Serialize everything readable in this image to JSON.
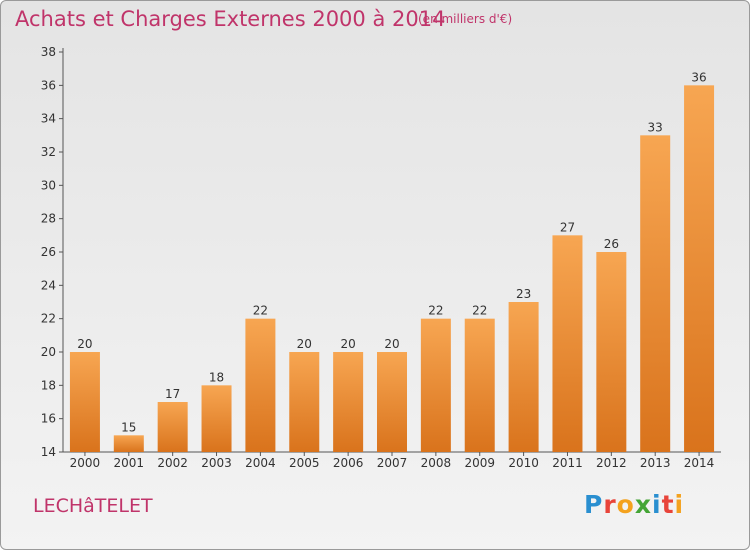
{
  "header": {
    "title": "Achats et Charges Externes 2000 à 2014",
    "subtitle": "(en milliers d'€)"
  },
  "footer": {
    "commune": "LECHâTELET",
    "brand": [
      "P",
      "r",
      "o",
      "x",
      "i",
      "t",
      "i"
    ],
    "brand_colors": [
      "#2a8fd0",
      "#e8443a",
      "#f4a21e",
      "#44a535",
      "#2a8fd0",
      "#e8443a",
      "#f4a21e"
    ]
  },
  "colors": {
    "bar_top": "#f7a652",
    "bar_bottom": "#d9731c",
    "text": "#c0346a",
    "axis": "#555555"
  },
  "chart_data": {
    "type": "bar",
    "title": "Achats et Charges Externes 2000 à 2014",
    "subtitle": "(en milliers d'€)",
    "categories": [
      "2000",
      "2001",
      "2002",
      "2003",
      "2004",
      "2005",
      "2006",
      "2007",
      "2008",
      "2009",
      "2010",
      "2011",
      "2012",
      "2013",
      "2014"
    ],
    "values": [
      20,
      15,
      17,
      18,
      22,
      20,
      20,
      20,
      22,
      22,
      23,
      27,
      26,
      33,
      36
    ],
    "ylim": [
      14,
      38
    ],
    "yticks": [
      14,
      16,
      18,
      20,
      22,
      24,
      26,
      28,
      30,
      32,
      34,
      36,
      38
    ],
    "grid": false,
    "legend": "none"
  }
}
